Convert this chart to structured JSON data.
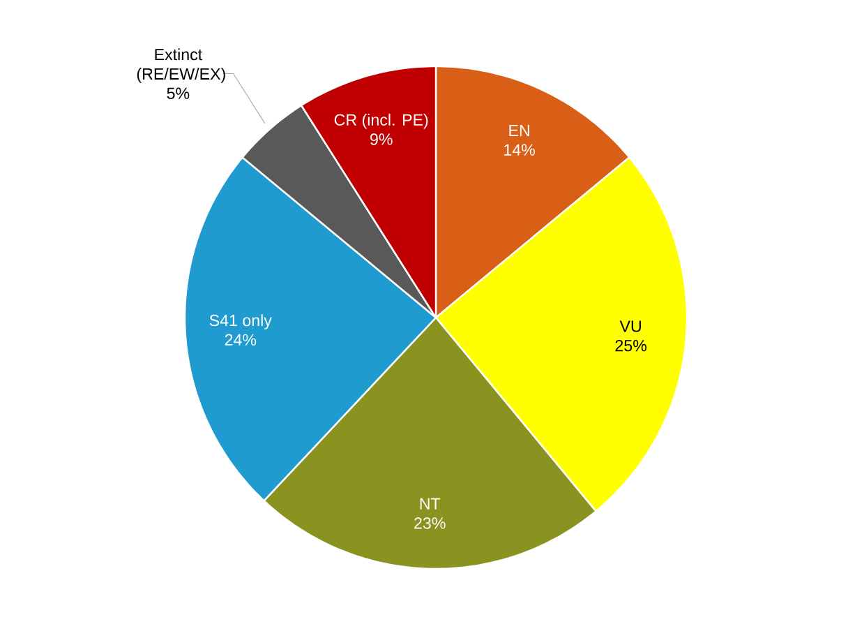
{
  "chart_data": {
    "type": "pie",
    "categories": [
      "EN",
      "VU",
      "NT",
      "S41 only",
      "Extinct (RE/EW/EX)",
      "CR (incl. PE)"
    ],
    "values": [
      14,
      25,
      23,
      24,
      5,
      9
    ],
    "colors": [
      "#d95f16",
      "#ffff00",
      "#8a9220",
      "#1f9bcf",
      "#595959",
      "#c00000"
    ],
    "value_labels": [
      "14%",
      "25%",
      "23%",
      "24%",
      "5%",
      "9%"
    ]
  }
}
